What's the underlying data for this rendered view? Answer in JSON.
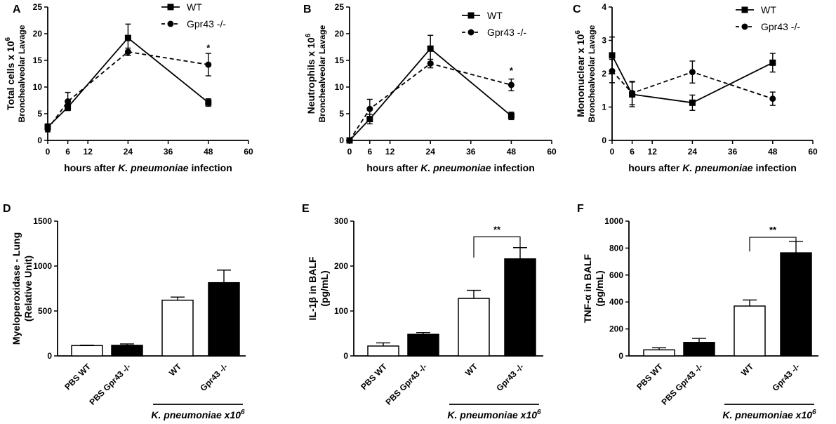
{
  "chart_data": [
    {
      "id": "A",
      "type": "line",
      "panel_label": "A",
      "xlabel_pre": "hours after ",
      "xlabel_ital": "K. pneumoniae",
      "xlabel_post": " infection",
      "ylabel_main": "Total cells x 10",
      "ylabel_sup": "6",
      "ylabel_sub": "Bronchealveolar Lavage",
      "xlim": [
        0,
        60
      ],
      "ylim": [
        0,
        25
      ],
      "xticks": [
        0,
        6,
        12,
        24,
        36,
        48,
        60
      ],
      "yticks": [
        0,
        5,
        10,
        15,
        20,
        25
      ],
      "series": [
        {
          "name": "WT",
          "x": [
            0,
            6,
            24,
            48
          ],
          "y": [
            2.5,
            6.2,
            19.2,
            7.1
          ],
          "err": [
            0.6,
            0.6,
            2.6,
            0.7
          ]
        },
        {
          "name": "Gpr43 -/-",
          "x": [
            0,
            6,
            24,
            48
          ],
          "y": [
            2.1,
            7.3,
            16.6,
            14.2
          ],
          "err": [
            0.5,
            1.7,
            0.7,
            2.1
          ]
        }
      ],
      "annotations": [
        {
          "x": 48,
          "y": 16.8,
          "text": "*"
        }
      ]
    },
    {
      "id": "B",
      "type": "line",
      "panel_label": "B",
      "xlabel_pre": "hours after ",
      "xlabel_ital": "K. pneumoniae",
      "xlabel_post": " infection",
      "ylabel_main": "Neutrophils x 10",
      "ylabel_sup": "6",
      "ylabel_sub": "Bronchealveolar Lavage",
      "xlim": [
        0,
        60
      ],
      "ylim": [
        0,
        25
      ],
      "xticks": [
        0,
        6,
        12,
        24,
        36,
        48,
        60
      ],
      "yticks": [
        0,
        5,
        10,
        15,
        20,
        25
      ],
      "series": [
        {
          "name": "WT",
          "x": [
            0,
            6,
            24,
            48
          ],
          "y": [
            0,
            4.0,
            17.2,
            4.6
          ],
          "err": [
            0.2,
            0.9,
            2.5,
            0.7
          ]
        },
        {
          "name": "Gpr43 -/-",
          "x": [
            0,
            6,
            24,
            48
          ],
          "y": [
            0,
            5.9,
            14.4,
            10.4
          ],
          "err": [
            0.2,
            1.8,
            0.8,
            1.1
          ]
        }
      ],
      "annotations": [
        {
          "x": 48,
          "y": 12.5,
          "text": "*"
        }
      ]
    },
    {
      "id": "C",
      "type": "line",
      "panel_label": "C",
      "xlabel_pre": "hours after ",
      "xlabel_ital": "K. pneumoniae",
      "xlabel_post": " infection",
      "ylabel_main": "Mononuclear x 10",
      "ylabel_sup": "6",
      "ylabel_sub": "Bronchealveolar Lavage",
      "xlim": [
        0,
        60
      ],
      "ylim": [
        0,
        4
      ],
      "xticks": [
        0,
        6,
        12,
        24,
        36,
        48,
        60
      ],
      "yticks": [
        0,
        1,
        2,
        3,
        4
      ],
      "series": [
        {
          "name": "WT",
          "x": [
            0,
            6,
            24,
            48
          ],
          "y": [
            2.55,
            1.38,
            1.13,
            2.33
          ],
          "err": [
            0.55,
            0.37,
            0.23,
            0.28
          ]
        },
        {
          "name": "Gpr43 -/-",
          "x": [
            0,
            6,
            24,
            48
          ],
          "y": [
            2.08,
            1.42,
            2.05,
            1.25
          ],
          "err": [
            0.35,
            0.35,
            0.33,
            0.2
          ]
        }
      ],
      "annotations": []
    },
    {
      "id": "D",
      "type": "bar",
      "panel_label": "D",
      "ylabel_main": "Myeloperoxidase - Lung",
      "ylabel_sub": "(Relative Unit)",
      "ylim": [
        0,
        1500
      ],
      "yticks": [
        0,
        500,
        1000,
        1500
      ],
      "categories": [
        "PBS WT",
        "PBS Gpr43 -/-",
        "WT",
        "Gpr43 -/-"
      ],
      "values": [
        115,
        118,
        620,
        815
      ],
      "err": [
        5,
        15,
        35,
        140
      ],
      "fills": [
        "white",
        "black",
        "white",
        "black"
      ],
      "group_label": "K. pneumoniae x10",
      "group_sup": "6",
      "significance": null
    },
    {
      "id": "E",
      "type": "bar",
      "panel_label": "E",
      "ylabel_main": "IL-1β in BALF",
      "ylabel_sub": "(pg/mL)",
      "ylim": [
        0,
        300
      ],
      "yticks": [
        0,
        100,
        200,
        300
      ],
      "categories": [
        "PBS WT",
        "PBS Gpr43 -/-",
        "WT",
        "Gpr43 -/-"
      ],
      "values": [
        22,
        48,
        128,
        216
      ],
      "err": [
        7,
        4,
        18,
        25
      ],
      "fills": [
        "white",
        "black",
        "white",
        "black"
      ],
      "group_label": "K. pneumoniae x10",
      "group_sup": "6",
      "significance": {
        "from": 2,
        "to": 3,
        "label": "**",
        "level": 265,
        "low": 240
      }
    },
    {
      "id": "F",
      "type": "bar",
      "panel_label": "F",
      "ylabel_main": "TNF-α in BALF",
      "ylabel_sub": "(pg/mL)",
      "ylim": [
        0,
        1000
      ],
      "yticks": [
        0,
        200,
        400,
        600,
        800,
        1000
      ],
      "categories": [
        "PBS WT",
        "PBS Gpr43 -/-",
        "WT",
        "Gpr43 -/-"
      ],
      "values": [
        45,
        100,
        370,
        765
      ],
      "err": [
        15,
        30,
        45,
        85
      ],
      "fills": [
        "white",
        "black",
        "white",
        "black"
      ],
      "group_label": "K. pneumoniae x10",
      "group_sup": "6",
      "significance": {
        "from": 2,
        "to": 3,
        "label": "**",
        "level": 880,
        "low": 845
      }
    }
  ]
}
